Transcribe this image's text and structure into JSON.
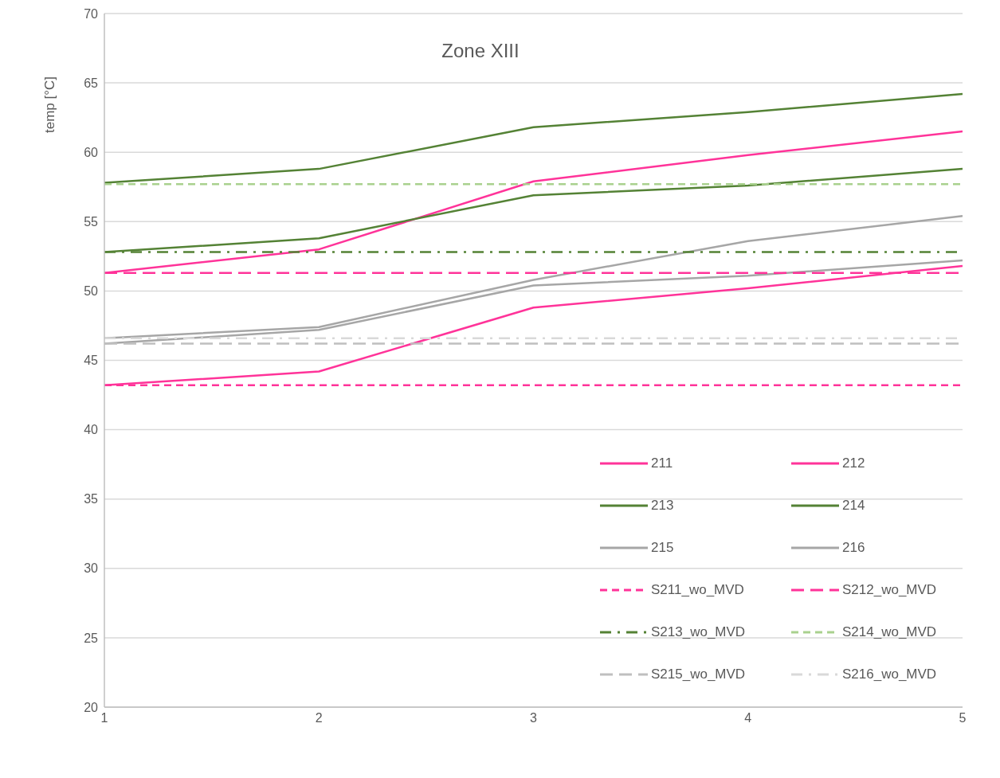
{
  "chart_data": {
    "type": "line",
    "title": "Zone XIII",
    "ylabel": "temp [°C]",
    "x": [
      1,
      2,
      3,
      4,
      5
    ],
    "xlim": [
      1,
      5
    ],
    "xticks": [
      1,
      2,
      3,
      4,
      5
    ],
    "ylim": [
      20,
      70
    ],
    "yticks": [
      20,
      25,
      30,
      35,
      40,
      45,
      50,
      55,
      60,
      65,
      70
    ],
    "grid": "y",
    "legend": "bottom right",
    "marker": "none",
    "series": [
      {
        "name": "211",
        "color": "#ff3399",
        "line_style": "solid",
        "values": [
          43.2,
          44.2,
          48.8,
          50.2,
          51.8
        ]
      },
      {
        "name": "212",
        "color": "#ff3399",
        "line_style": "solid",
        "values": [
          51.3,
          53.0,
          57.9,
          59.8,
          61.5
        ]
      },
      {
        "name": "213",
        "color": "#548235",
        "line_style": "solid",
        "values": [
          52.8,
          53.8,
          56.9,
          57.6,
          58.8
        ]
      },
      {
        "name": "214",
        "color": "#548235",
        "line_style": "solid",
        "values": [
          57.8,
          58.8,
          61.8,
          62.9,
          64.2
        ]
      },
      {
        "name": "215",
        "color": "#a6a6a6",
        "line_style": "solid",
        "values": [
          46.2,
          47.2,
          50.4,
          51.1,
          52.2
        ]
      },
      {
        "name": "216",
        "color": "#a6a6a6",
        "line_style": "solid",
        "values": [
          46.6,
          47.4,
          50.8,
          53.6,
          55.4
        ]
      },
      {
        "name": "S211_wo_MVD",
        "color": "#ff3399",
        "line_style": "dashed",
        "values": [
          43.2,
          43.2,
          43.2,
          43.2,
          43.2
        ]
      },
      {
        "name": "S212_wo_MVD",
        "color": "#ff3399",
        "line_style": "longdash",
        "values": [
          51.3,
          51.3,
          51.3,
          51.3,
          51.3
        ]
      },
      {
        "name": "S213_wo_MVD",
        "color": "#548235",
        "line_style": "dashdot",
        "values": [
          52.8,
          52.8,
          52.8,
          52.8,
          52.8
        ]
      },
      {
        "name": "S214_wo_MVD",
        "color": "#a9d18e",
        "line_style": "dashed",
        "values": [
          57.7,
          57.7,
          57.7,
          57.7,
          57.7
        ]
      },
      {
        "name": "S215_wo_MVD",
        "color": "#bfbfbf",
        "line_style": "longdash",
        "values": [
          46.2,
          46.2,
          46.2,
          46.2,
          46.2
        ]
      },
      {
        "name": "S216_wo_MVD",
        "color": "#d9d9d9",
        "line_style": "dashdot",
        "values": [
          46.6,
          46.6,
          46.6,
          46.6,
          46.6
        ]
      }
    ]
  }
}
